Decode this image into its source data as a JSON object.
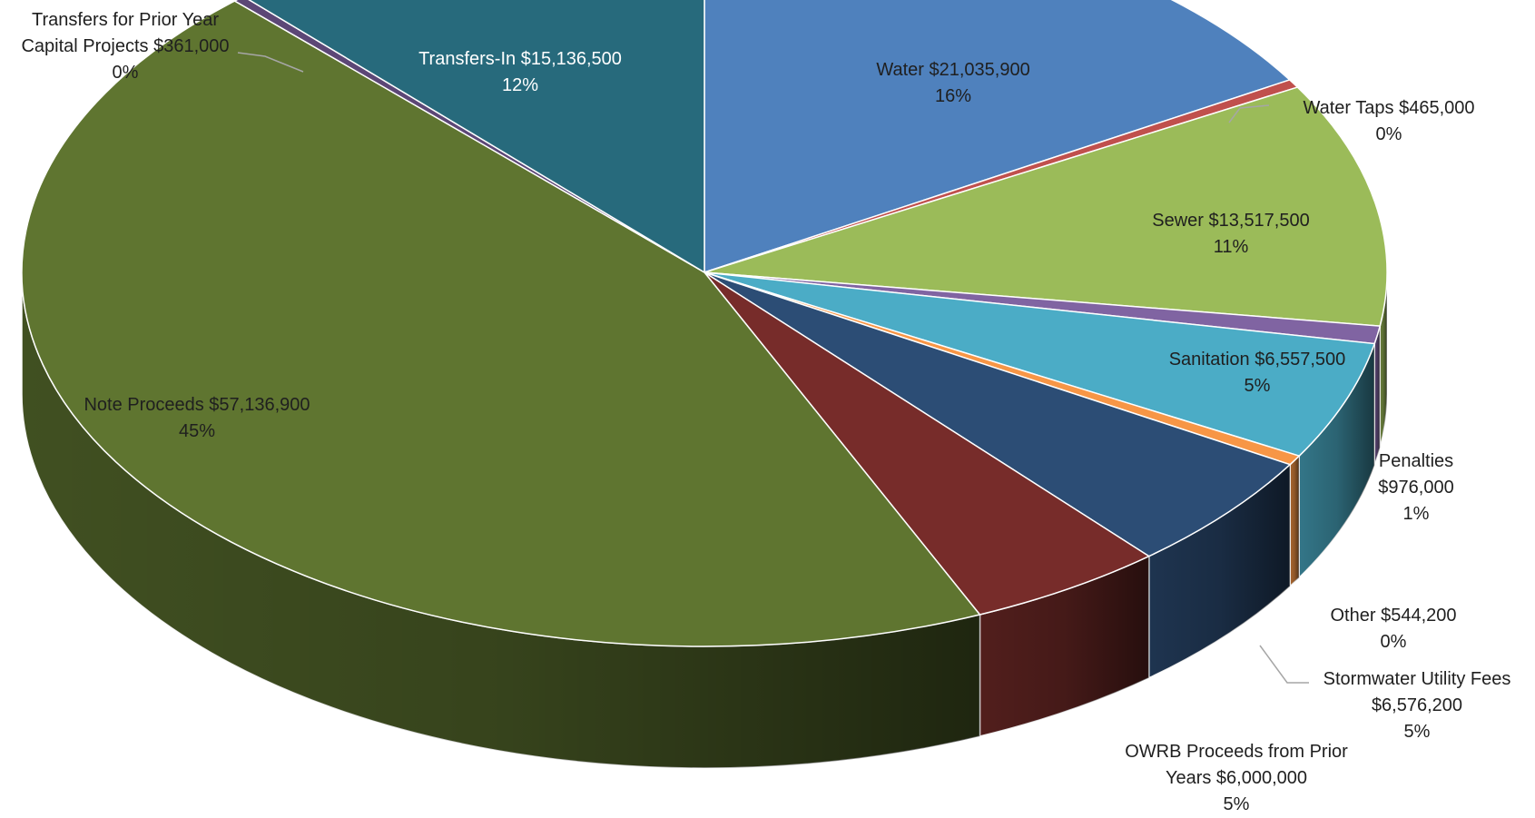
{
  "chart_data": {
    "type": "pie",
    "style": "3d",
    "title": "",
    "slices": [
      {
        "label": "Water",
        "amount": "$21,035,900",
        "value": 21035900,
        "pct": "16%",
        "color": "#4f81bd",
        "label_style": "inside-white-dark"
      },
      {
        "label": "Water Taps",
        "amount": "$465,000",
        "value": 465000,
        "pct": "0%",
        "color": "#c0504d",
        "label_style": "outside"
      },
      {
        "label": "Sewer",
        "amount": "$13,517,500",
        "value": 13517500,
        "pct": "11%",
        "color": "#9bbb59",
        "label_style": "inside"
      },
      {
        "label": "",
        "amount": "",
        "value": 976000,
        "pct": "",
        "color": "#8064a2",
        "label_style": "none"
      },
      {
        "label": "Sanitation",
        "amount": "$6,557,500",
        "value": 6557500,
        "pct": "5%",
        "color": "#4bacc6",
        "label_style": "inside"
      },
      {
        "label": "",
        "amount": "",
        "value": 544200,
        "pct": "",
        "color": "#f79646",
        "label_style": "none"
      },
      {
        "label": "",
        "amount": "",
        "value": 6576200,
        "pct": "",
        "color": "#2c4d75",
        "label_style": "none"
      },
      {
        "label": "",
        "amount": "",
        "value": 6000000,
        "pct": "",
        "color": "#772c2a",
        "label_style": "none"
      },
      {
        "label": "Note Proceeds",
        "amount": "$57,136,900",
        "value": 57136900,
        "pct": "45%",
        "color": "#5f7530",
        "label_style": "inside"
      },
      {
        "label": "Transfers for Prior Year Capital Projects",
        "amount": "$361,000",
        "value": 361000,
        "pct": "0%",
        "color": "#5c4776",
        "label_style": "outside"
      },
      {
        "label": "Transfers-In",
        "amount": "$15,136,500",
        "value": 15136500,
        "pct": "12%",
        "color": "#276a7c",
        "label_style": "inside-white"
      }
    ],
    "outside_labels": {
      "transfers_prior": {
        "line1": "Transfers for Prior Year",
        "line2": "Capital Projects $361,000",
        "line3": "0%"
      },
      "water_taps": {
        "line1": "Water Taps $465,000",
        "line2": "0%"
      },
      "penalties": {
        "line1": "Penalties",
        "line2": "$976,000",
        "line3": "1%"
      },
      "other": {
        "line1": "Other $544,200",
        "line2": "0%"
      },
      "stormwater": {
        "line1": "Stormwater Utility Fees",
        "line2": "$6,576,200",
        "line3": "5%"
      },
      "owrb": {
        "line1": "OWRB Proceeds from Prior",
        "line2": "Years $6,000,000",
        "line3": "5%"
      }
    },
    "inside_labels": {
      "water": {
        "line1": "Water $21,035,900",
        "line2": "16%"
      },
      "sewer": {
        "line1": "Sewer $13,517,500",
        "line2": "11%"
      },
      "sanitation": {
        "line1": "Sanitation $6,557,500",
        "line2": "5%"
      },
      "note_proceeds": {
        "line1": "Note Proceeds $57,136,900",
        "line2": "45%"
      },
      "transfers_in": {
        "line1": "Transfers-In $15,136,500",
        "line2": "12%"
      }
    },
    "legend": "none"
  }
}
